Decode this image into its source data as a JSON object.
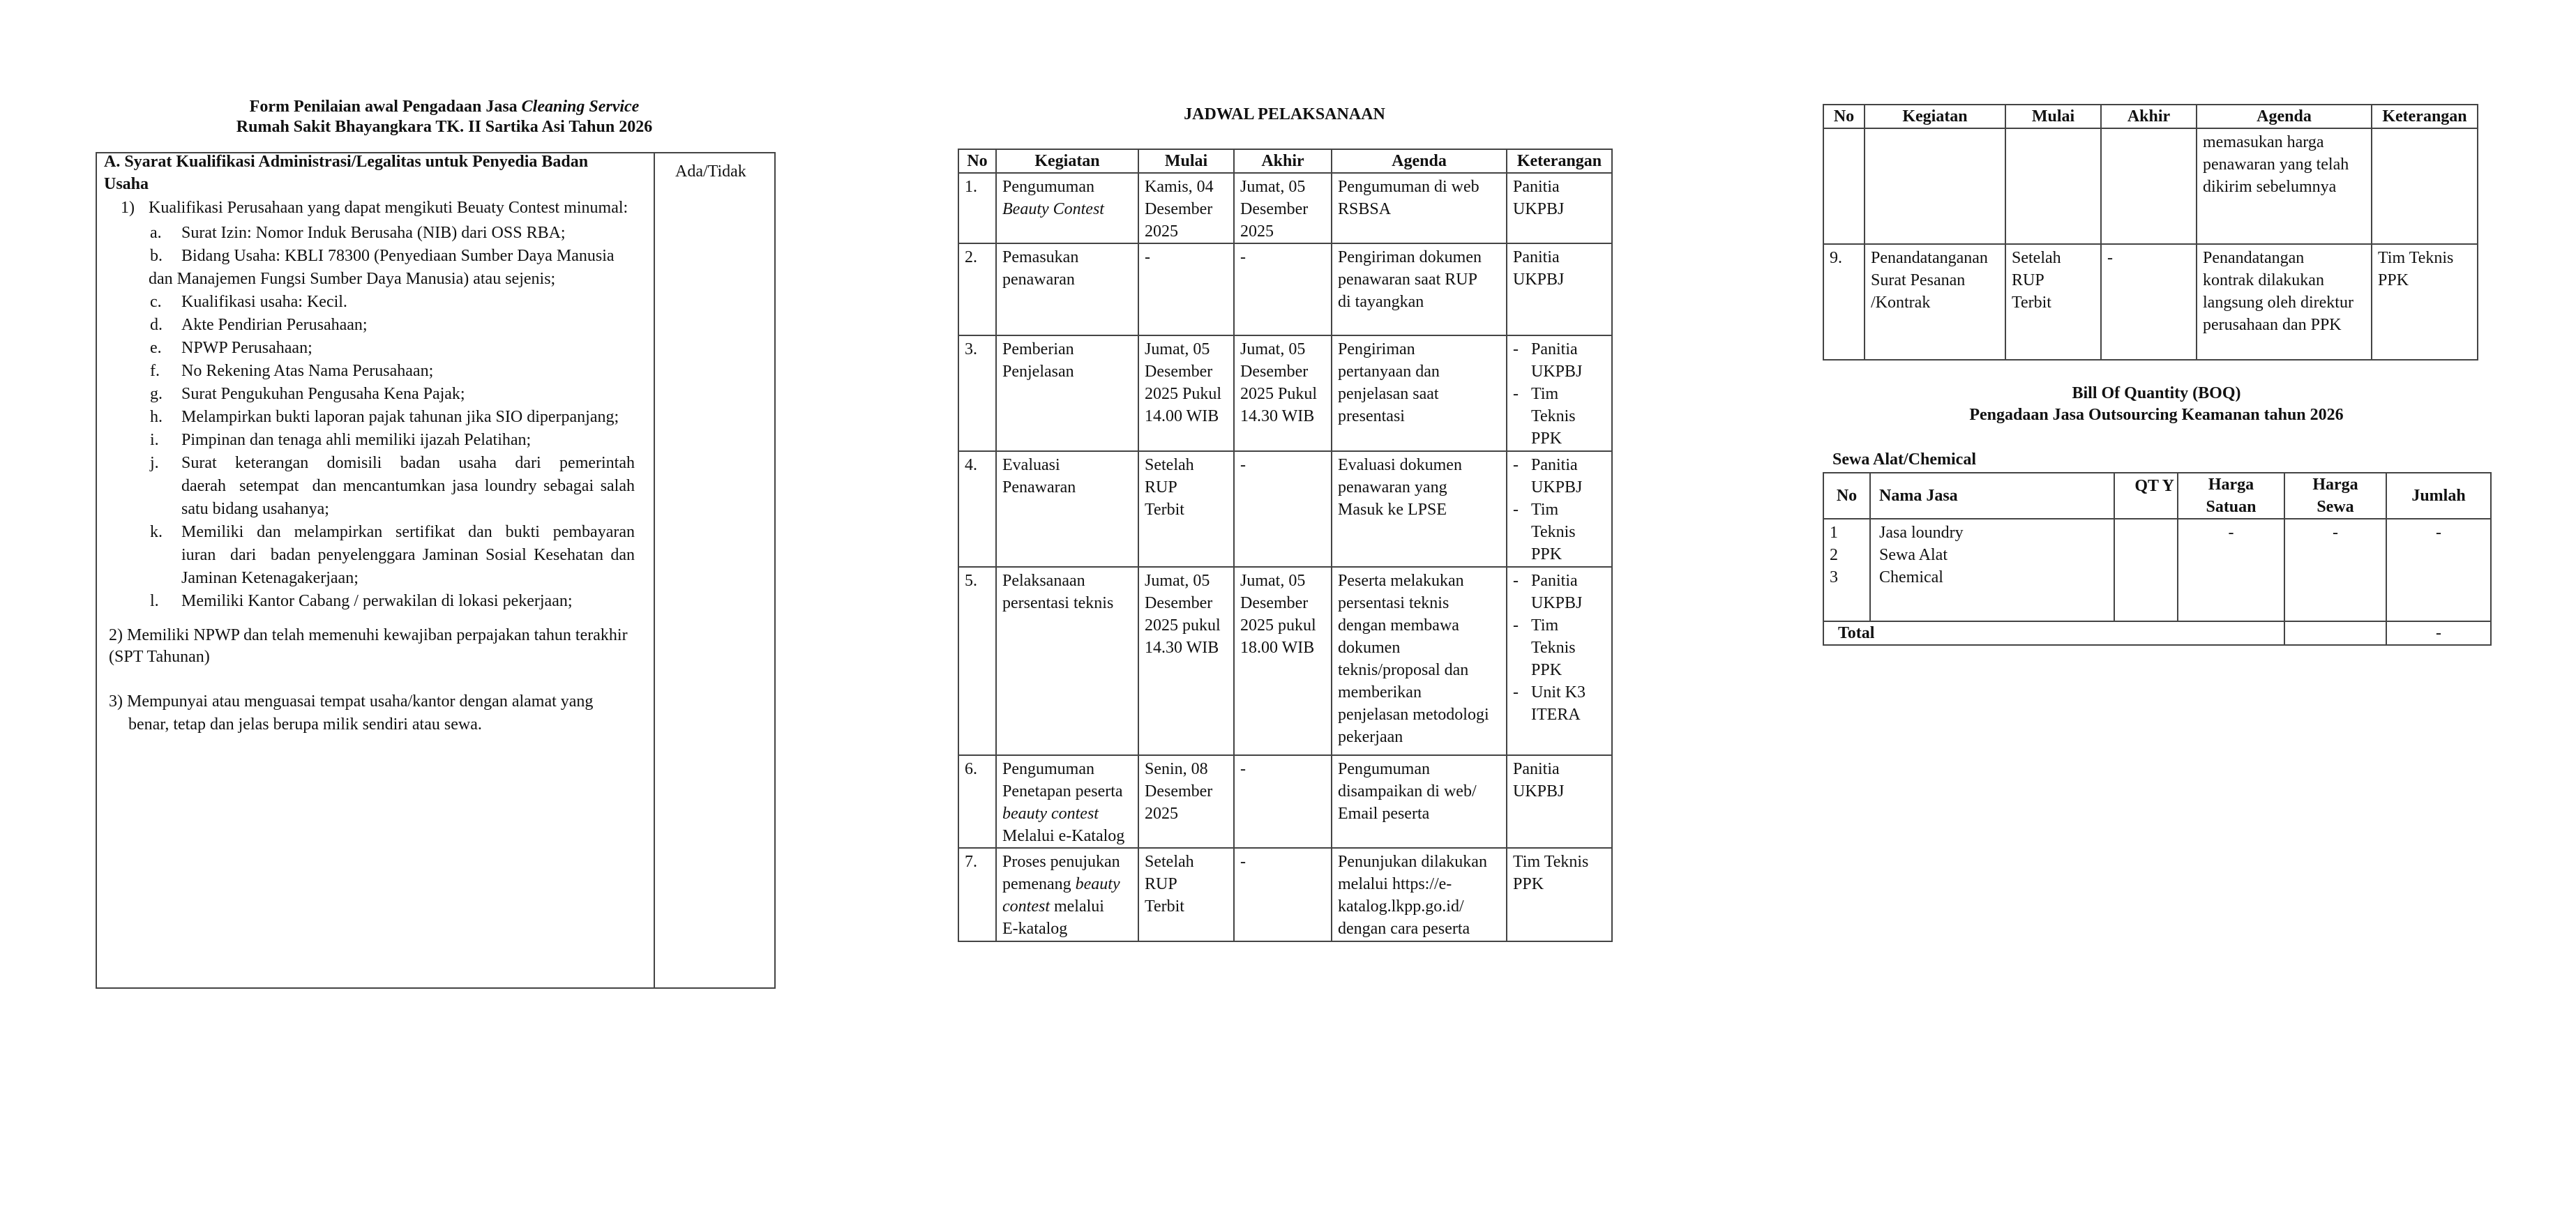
{
  "form": {
    "title_line1_prefix": "Form Penilaian awal Pengadaan Jasa ",
    "title_line1_italic": "Cleaning Service",
    "title_line2": "Rumah Sakit Bhayangkara TK. II Sartika Asi Tahun 2026",
    "section_heading_line1": "A.  Syarat Kualifikasi Administrasi/Legalitas untuk Penyedia Badan",
    "section_heading_line2": "Usaha",
    "status_column_label": "Ada/Tidak",
    "req1_num": "1)",
    "req1_text": "Kualifikasi Perusahaan yang dapat mengikuti Beuaty Contest minumal:",
    "sub_items": [
      {
        "letter": "a.",
        "lines": [
          "Surat Izin: Nomor Induk Berusaha (NIB) dari OSS RBA;"
        ]
      },
      {
        "letter": "b.",
        "lines": [
          "Bidang Usaha: KBLI 78300 (Penyediaan Sumber Daya Manusia",
          "dan Manajemen Fungsi Sumber Daya Manusia) atau sejenis;"
        ]
      },
      {
        "letter": "c.",
        "lines": [
          "Kualifikasi usaha: Kecil."
        ]
      },
      {
        "letter": "d.",
        "lines": [
          "Akte Pendirian Perusahaan;"
        ]
      },
      {
        "letter": "e.",
        "lines": [
          "NPWP Perusahaan;"
        ]
      },
      {
        "letter": "f.",
        "lines": [
          "No Rekening Atas Nama Perusahaan;"
        ]
      },
      {
        "letter": "g.",
        "lines": [
          "Surat Pengukuhan Pengusaha Kena Pajak;"
        ]
      },
      {
        "letter": "h.",
        "lines": [
          "Melampirkan bukti laporan pajak tahunan jika SIO diperpanjang;"
        ]
      },
      {
        "letter": "i.",
        "lines": [
          "Pimpinan dan tenaga ahli memiliki ijazah Pelatihan;"
        ]
      },
      {
        "letter": "j.",
        "lines": [
          "Surat  keterangan  domisili  badan  usaha  dari  pemerintah",
          "daerah  setempat  dan mencantumkan jasa loundry sebagai salah",
          "satu bidang usahanya;"
        ]
      },
      {
        "letter": "k.",
        "lines": [
          "Memiliki  dan  melampirkan  sertifikat  dan  bukti  pembayaran",
          "iuran  dari  badan penyelenggara Jaminan Sosial Kesehatan dan",
          "Jaminan Ketenagakerjaan;"
        ]
      },
      {
        "letter": "l.",
        "lines": [
          "Memiliki Kantor Cabang / perwakilan di lokasi pekerjaan;"
        ]
      }
    ],
    "req2_lines": [
      "2) Memiliki NPWP dan telah memenuhi kewajiban perpajakan tahun terakhir",
      "(SPT Tahunan)"
    ],
    "req3_lines": [
      "3) Mempunyai atau menguasai tempat usaha/kantor dengan alamat yang",
      "benar, tetap dan jelas berupa milik sendiri atau sewa."
    ]
  },
  "schedule": {
    "title": "JADWAL PELAKSANAAN",
    "headers": [
      "No",
      "Kegiatan",
      "Mulai",
      "Akhir",
      "Agenda",
      "Keterangan"
    ],
    "rows": [
      {
        "no": "1.",
        "kegiatan": [
          {
            "text": "Pengumuman\n"
          },
          {
            "text": "Beauty Contest",
            "italic": true
          }
        ],
        "mulai": "Kamis, 04\nDesember\n2025",
        "akhir": "Jumat, 05\nDesember\n2025",
        "agenda": "Pengumuman di web\nRSBSA",
        "keterangan": "Panitia\nUKPBJ"
      },
      {
        "no": "2.",
        "kegiatan": [
          {
            "text": "Pemasukan\npenawaran"
          }
        ],
        "mulai": "-",
        "akhir": "-",
        "agenda": "Pengiriman dokumen\npenawaran saat RUP\ndi tayangkan",
        "keterangan": "Panitia\nUKPBJ"
      },
      {
        "no": "3.",
        "kegiatan": [
          {
            "text": "Pemberian\nPenjelasan"
          }
        ],
        "mulai": "Jumat, 05\nDesember\n2025 Pukul\n14.00 WIB",
        "akhir": "Jumat, 05\nDesember\n2025 Pukul\n14.30 WIB",
        "agenda": "Pengiriman\npertanyaan dan\npenjelasan saat\npresentasi",
        "keterangan": [
          "Panitia\nUKPBJ",
          "Tim\nTeknis\nPPK"
        ]
      },
      {
        "no": "4.",
        "kegiatan": [
          {
            "text": "Evaluasi\nPenawaran"
          }
        ],
        "mulai": "Setelah\nRUP\nTerbit",
        "akhir": "-",
        "agenda": "Evaluasi dokumen\npenawaran yang\nMasuk ke LPSE",
        "keterangan": [
          "Panitia\nUKPBJ",
          "Tim\nTeknis\nPPK"
        ]
      },
      {
        "no": "5.",
        "kegiatan": [
          {
            "text": "Pelaksanaan\npersentasi teknis"
          }
        ],
        "mulai": "Jumat, 05\nDesember\n2025 pukul\n14.30 WIB",
        "akhir": "Jumat, 05\nDesember\n2025 pukul\n18.00 WIB",
        "agenda": "Peserta melakukan\npersentasi teknis\ndengan membawa\ndokumen\nteknis/proposal dan\nmemberikan\npenjelasan metodologi\npekerjaan",
        "keterangan": [
          "Panitia\nUKPBJ",
          "Tim\nTeknis\nPPK",
          "Unit K3\nITERA"
        ]
      },
      {
        "no": "6.",
        "kegiatan": [
          {
            "text": "Pengumuman\nPenetapan peserta\n"
          },
          {
            "text": "beauty contest",
            "italic": true
          },
          {
            "text": "\nMelalui e-Katalog"
          }
        ],
        "mulai": "Senin, 08\nDesember\n2025",
        "akhir": "-",
        "agenda": "Pengumuman\ndisampaikan di web/\nEmail peserta",
        "keterangan": "Panitia\nUKPBJ"
      },
      {
        "no": "7.",
        "kegiatan": [
          {
            "text": "Proses penujukan\npemenang "
          },
          {
            "text": "beauty\ncontest",
            "italic": true
          },
          {
            "text": " melalui\nE-katalog"
          }
        ],
        "mulai": "Setelah\nRUP\nTerbit",
        "akhir": "-",
        "agenda": "Penunjukan dilakukan\nmelalui https://e-\nkatalog.lkpp.go.id/\ndengan cara peserta",
        "keterangan": "Tim Teknis\nPPK"
      }
    ],
    "continued_rows": [
      {
        "no": "",
        "kegiatan": [
          {
            "text": ""
          }
        ],
        "mulai": "",
        "akhir": "",
        "agenda": "memasukan harga\npenawaran yang telah\ndikirim sebelumnya",
        "keterangan": ""
      },
      {
        "no": "9.",
        "kegiatan": [
          {
            "text": "Penandatanganan\nSurat Pesanan\n/Kontrak"
          }
        ],
        "mulai": "Setelah\nRUP\nTerbit",
        "akhir": "-",
        "agenda": "Penandatangan\nkontrak dilakukan\nlangsung oleh direktur\nperusahaan dan PPK",
        "keterangan": "Tim Teknis\nPPK"
      }
    ]
  },
  "boq": {
    "title_line1": "Bill Of Quantity (BOQ)",
    "title_line2": "Pengadaan Jasa Outsourcing Keamanan tahun 2026",
    "subtitle": "Sewa Alat/Chemical",
    "headers": {
      "no": "No",
      "nama": "Nama Jasa",
      "qty": "QT Y",
      "harga_satuan": "Harga\nSatuan",
      "harga_sewa": "Harga\nSewa",
      "jumlah": "Jumlah"
    },
    "body": {
      "numbers": "1\n2\n3",
      "names": "Jasa loundry\nSewa Alat\nChemical",
      "qty": "",
      "harga_satuan": "-",
      "harga_sewa": "-",
      "jumlah": "-"
    },
    "total_label": "Total",
    "total_harga_sewa": "",
    "total_jumlah": "-"
  }
}
